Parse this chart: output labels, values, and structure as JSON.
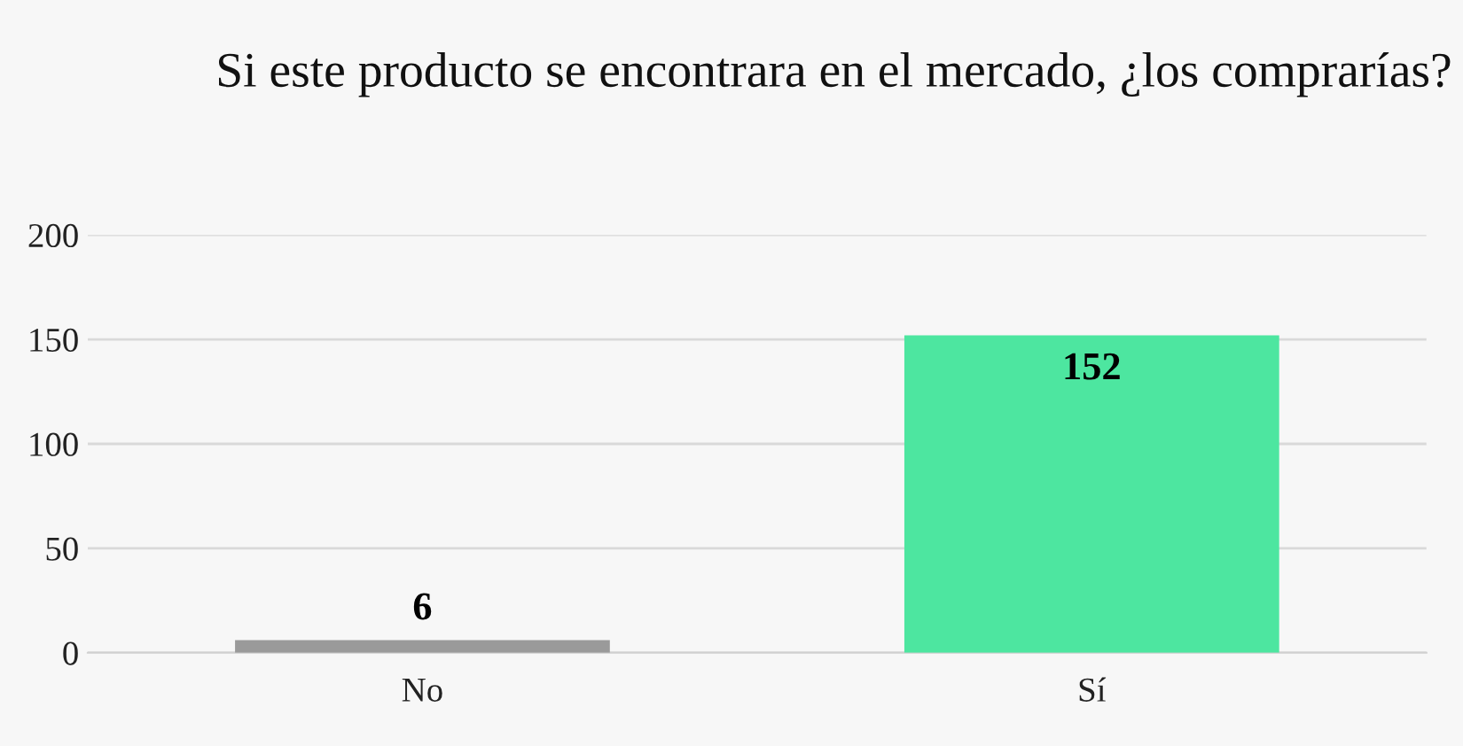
{
  "chart_data": {
    "type": "bar",
    "title": "Si este producto se encontrara en el mercado, ¿los comprarías?",
    "categories": [
      "No",
      "Sí"
    ],
    "values": [
      6,
      152
    ],
    "colors": [
      "#9a9a9a",
      "#4de6a0"
    ],
    "ylim": [
      0,
      200
    ],
    "yticks": [
      0,
      50,
      100,
      150,
      200
    ],
    "grid": "y",
    "data_labels": true
  }
}
